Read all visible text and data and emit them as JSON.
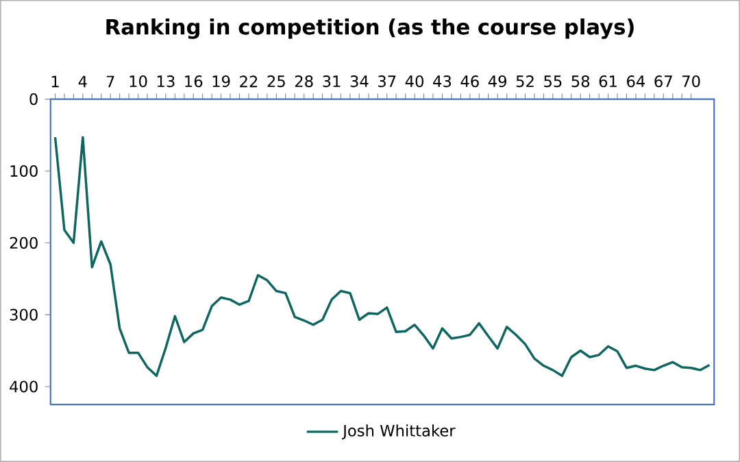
{
  "chart_data": {
    "type": "line",
    "title": "Ranking in competition (as the course plays)",
    "x": [
      1,
      2,
      3,
      4,
      5,
      6,
      7,
      8,
      9,
      10,
      11,
      12,
      13,
      14,
      15,
      16,
      17,
      18,
      19,
      20,
      21,
      22,
      23,
      24,
      25,
      26,
      27,
      28,
      29,
      30,
      31,
      32,
      33,
      34,
      35,
      36,
      37,
      38,
      39,
      40,
      41,
      42,
      43,
      44,
      45,
      46,
      47,
      48,
      49,
      50,
      51,
      52,
      53,
      54,
      55,
      56,
      57,
      58,
      59,
      60,
      61,
      62,
      63,
      64,
      65,
      66,
      67,
      68,
      69,
      70,
      71,
      72
    ],
    "series": [
      {
        "name": "Josh Whittaker",
        "color": "#0e6660",
        "values": [
          53,
          182,
          200,
          53,
          234,
          198,
          230,
          319,
          353,
          353,
          373,
          385,
          346,
          302,
          338,
          326,
          321,
          288,
          276,
          279,
          286,
          281,
          245,
          252,
          267,
          270,
          303,
          308,
          314,
          307,
          279,
          267,
          270,
          307,
          298,
          299,
          290,
          324,
          323,
          314,
          329,
          347,
          319,
          333,
          331,
          328,
          312,
          330,
          347,
          317,
          328,
          341,
          361,
          371,
          377,
          385,
          359,
          350,
          359,
          356,
          344,
          351,
          374,
          371,
          375,
          377,
          371,
          366,
          373,
          374,
          377,
          370
        ]
      }
    ],
    "xlim": [
      0.5,
      72.5
    ],
    "xticks": [
      1,
      4,
      7,
      10,
      13,
      16,
      19,
      22,
      25,
      28,
      31,
      34,
      37,
      40,
      43,
      46,
      49,
      52,
      55,
      58,
      61,
      64,
      67,
      70
    ],
    "ylim": [
      425,
      0
    ],
    "yticks": [
      0,
      100,
      200,
      300,
      400
    ],
    "legend": "bottom"
  }
}
